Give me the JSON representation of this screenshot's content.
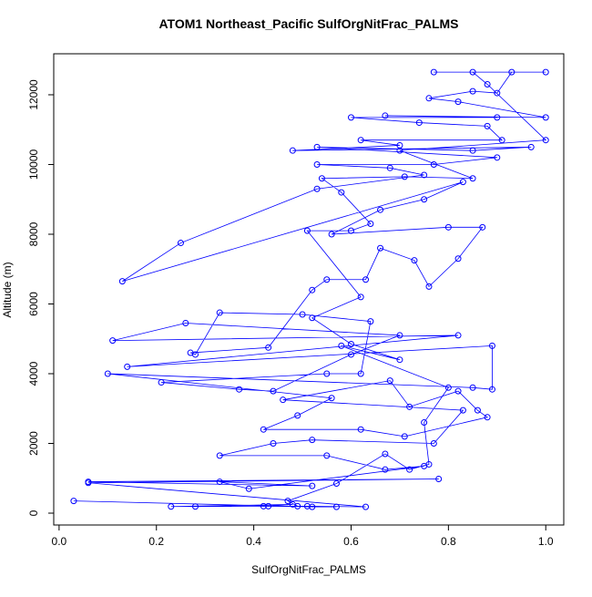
{
  "chart_data": {
    "type": "line",
    "title": "ATOM1 Northeast_Pacific SulfOrgNitFrac_PALMS",
    "xlabel": "SulfOrgNitFrac_PALMS",
    "ylabel": "Altitude (m)",
    "x": [
      0.03,
      0.52,
      0.57,
      0.42,
      0.48,
      0.23,
      0.28,
      0.43,
      0.51,
      0.63,
      0.06,
      0.78,
      0.06,
      0.52,
      0.33,
      0.39,
      0.75,
      0.67,
      0.55,
      0.33,
      0.44,
      0.52,
      0.77,
      0.83,
      0.46,
      0.68,
      0.72,
      0.82,
      0.86,
      0.88,
      0.71,
      0.62,
      0.42,
      0.49,
      0.56,
      0.1,
      0.85,
      0.89,
      0.89,
      0.14,
      0.82,
      0.11,
      0.26,
      0.7,
      0.6,
      0.44,
      0.37,
      0.21,
      0.55,
      0.62,
      0.64,
      0.5,
      0.33,
      0.28,
      0.27,
      0.43,
      0.52,
      0.55,
      0.63,
      0.66,
      0.73,
      0.76,
      0.82,
      0.87,
      0.8,
      0.56,
      0.66,
      0.75,
      0.83,
      0.13,
      0.25,
      0.53,
      0.75,
      0.68,
      0.53,
      0.77,
      0.9,
      0.53,
      0.85,
      0.97,
      0.48,
      0.7,
      0.62,
      0.91,
      0.88,
      0.74,
      0.6,
      0.9,
      0.67,
      1.0,
      0.82,
      0.76,
      0.85,
      0.9,
      0.93,
      0.77,
      1.0,
      0.85,
      0.88,
      1.0,
      0.7,
      0.85,
      0.71,
      0.54,
      0.58,
      0.64,
      0.6,
      0.51,
      0.62,
      0.52,
      0.6,
      0.7,
      0.58,
      0.8,
      0.75,
      0.76,
      0.72,
      0.67,
      0.57,
      0.47,
      0.49
    ],
    "series": [
      {
        "name": "SulfOrgNitFrac_PALMS",
        "color": "#0000ff",
        "values": [
          350,
          180,
          180,
          200,
          250,
          190,
          190,
          200,
          200,
          180,
          870,
          980,
          900,
          780,
          900,
          700,
          1350,
          1250,
          1650,
          1650,
          2000,
          2100,
          2000,
          2950,
          3250,
          3800,
          3050,
          3500,
          2950,
          2750,
          2200,
          2400,
          2400,
          2800,
          3300,
          4000,
          3600,
          3550,
          4800,
          4200,
          5100,
          4950,
          5450,
          5100,
          4550,
          3500,
          3550,
          3750,
          4000,
          4000,
          5500,
          5700,
          5750,
          4550,
          4600,
          4750,
          6400,
          6700,
          6700,
          7600,
          7250,
          6500,
          7300,
          8200,
          8200,
          8000,
          8700,
          9000,
          9500,
          6650,
          7750,
          9300,
          9700,
          9900,
          10000,
          10000,
          10200,
          10500,
          10400,
          10500,
          10400,
          10550,
          10700,
          10700,
          11100,
          11200,
          11350,
          11350,
          11400,
          11350,
          11800,
          11900,
          12100,
          12050,
          12650,
          12650,
          12650,
          12650,
          12300,
          10700,
          10400,
          9600,
          9650,
          9600,
          9200,
          8300,
          8100,
          8100,
          6200,
          5600,
          4850,
          4400,
          4800,
          3600,
          2600,
          1400,
          1250,
          1700,
          850,
          350,
          200
        ]
      }
    ],
    "xlim": [
      -0.011,
      1.037
    ],
    "ylim": [
      -340,
      13176
    ],
    "xticks": [
      {
        "value": 0,
        "label": "0.0"
      },
      0.2,
      0.4,
      0.6,
      0.8,
      {
        "value": 1,
        "label": "1.0"
      }
    ],
    "yticks": [
      0,
      2000,
      4000,
      6000,
      8000,
      10000,
      12000
    ]
  }
}
